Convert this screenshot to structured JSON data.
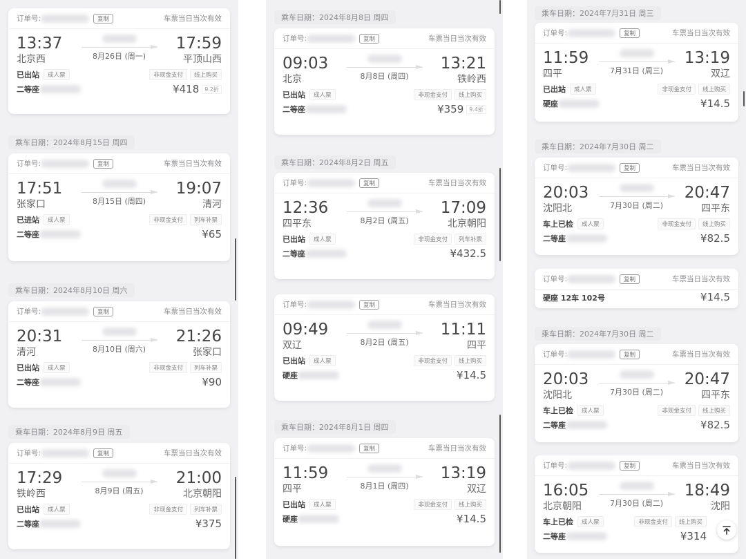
{
  "labels": {
    "order_no": "订单号:",
    "copy": "复制",
    "valid": "车票当日当次有效",
    "ride_date_prefix": "乘车日期："
  },
  "columns": [
    {
      "items": [
        {
          "type": "card",
          "dep_time": "13:37",
          "arr_time": "17:59",
          "dep": "北京西",
          "arr": "平顶山西",
          "date": "8月26日 (周一)",
          "status": "已出站",
          "ticket": "成人票",
          "pay": "非现金支付",
          "channel": "线上购买",
          "seat": "二等座",
          "price": "¥418",
          "discount": "9.2折"
        },
        {
          "type": "header",
          "text": "2024年8月15日 周四"
        },
        {
          "type": "card",
          "dep_time": "17:51",
          "arr_time": "19:07",
          "dep": "张家口",
          "arr": "清河",
          "date": "8月15日 (周四)",
          "status": "已进站",
          "ticket": "成人票",
          "pay": "非现金支付",
          "channel": "列车补票",
          "seat": "二等座",
          "price": "¥65"
        },
        {
          "type": "header",
          "text": "2024年8月10日 周六"
        },
        {
          "type": "card",
          "dep_time": "20:31",
          "arr_time": "21:26",
          "dep": "清河",
          "arr": "张家口",
          "date": "8月10日 (周六)",
          "status": "已出站",
          "ticket": "成人票",
          "pay": "非现金支付",
          "channel": "列车补票",
          "seat": "二等座",
          "price": "¥90"
        },
        {
          "type": "header",
          "text": "2024年8月9日 周五"
        },
        {
          "type": "card",
          "dep_time": "17:29",
          "arr_time": "21:00",
          "dep": "铁岭西",
          "arr": "北京朝阳",
          "date": "8月9日 (周五)",
          "status": "已出站",
          "ticket": "成人票",
          "pay": "非现金支付",
          "channel": "列车补票",
          "seat": "二等座",
          "price": "¥375"
        }
      ]
    },
    {
      "items": [
        {
          "type": "header",
          "text": "2024年8月8日 周四"
        },
        {
          "type": "card",
          "dep_time": "09:03",
          "arr_time": "13:21",
          "dep": "北京",
          "arr": "铁岭西",
          "date": "8月8日 (周四)",
          "status": "已出站",
          "ticket": "成人票",
          "pay": "非现金支付",
          "channel": "线上购买",
          "seat": "二等座",
          "price": "¥359",
          "discount": "9.4折"
        },
        {
          "type": "header",
          "text": "2024年8月2日 周五"
        },
        {
          "type": "card",
          "dep_time": "12:36",
          "arr_time": "17:09",
          "dep": "四平东",
          "arr": "北京朝阳",
          "date": "8月2日 (周五)",
          "status": "已出站",
          "ticket": "成人票",
          "pay": "非现金支付",
          "channel": "列车补票",
          "seat": "二等座",
          "price": "¥432.5"
        },
        {
          "type": "card",
          "dep_time": "09:49",
          "arr_time": "11:11",
          "dep": "双辽",
          "arr": "四平",
          "date": "8月2日 (周五)",
          "status": "已出站",
          "ticket": "成人票",
          "pay": "非现金支付",
          "channel": "线上购买",
          "seat": "硬座",
          "price": "¥14.5"
        },
        {
          "type": "header",
          "text": "2024年8月1日 周四"
        },
        {
          "type": "card",
          "dep_time": "11:59",
          "arr_time": "13:19",
          "dep": "四平",
          "arr": "双辽",
          "date": "8月1日 (周四)",
          "status": "已出站",
          "ticket": "成人票",
          "pay": "非现金支付",
          "channel": "线上购买",
          "seat": "硬座",
          "price": "¥14.5"
        }
      ]
    },
    {
      "items": [
        {
          "type": "header",
          "text": "2024年7月31日 周三"
        },
        {
          "type": "card",
          "dep_time": "11:59",
          "arr_time": "13:19",
          "dep": "四平",
          "arr": "双辽",
          "date": "7月31日 (周三)",
          "status": "已出站",
          "ticket": "成人票",
          "pay": "非现金支付",
          "channel": "线上购买",
          "seat": "硬座",
          "price": "¥14.5"
        },
        {
          "type": "header",
          "text": "2024年7月30日 周二"
        },
        {
          "type": "card",
          "dep_time": "20:03",
          "arr_time": "20:47",
          "dep": "沈阳北",
          "arr": "四平东",
          "date": "7月30日 (周二)",
          "status": "车上已检",
          "ticket": "成人票",
          "pay": "非现金支付",
          "channel": "线上购买",
          "seat": "二等座",
          "price": "¥82.5"
        },
        {
          "type": "mini",
          "seat": "硬座 12车 102号",
          "price": "¥14.5"
        },
        {
          "type": "header",
          "text": "2024年7月30日 周二"
        },
        {
          "type": "card",
          "dep_time": "20:03",
          "arr_time": "20:47",
          "dep": "沈阳北",
          "arr": "四平东",
          "date": "7月30日 (周二)",
          "status": "车上已检",
          "ticket": "成人票",
          "pay": "非现金支付",
          "channel": "线上购买",
          "seat": "二等座",
          "price": "¥82.5"
        },
        {
          "type": "card",
          "dep_time": "16:05",
          "arr_time": "18:49",
          "dep": "北京朝阳",
          "arr": "沈阳",
          "date": "7月30日 (周二)",
          "status": "车上已检",
          "ticket": "成人票",
          "pay": "非现金支付",
          "channel": "线上购买",
          "seat": "二等座",
          "price": "¥314"
        }
      ]
    }
  ],
  "scroll_top_icon": "arrow-up-to-top-icon"
}
